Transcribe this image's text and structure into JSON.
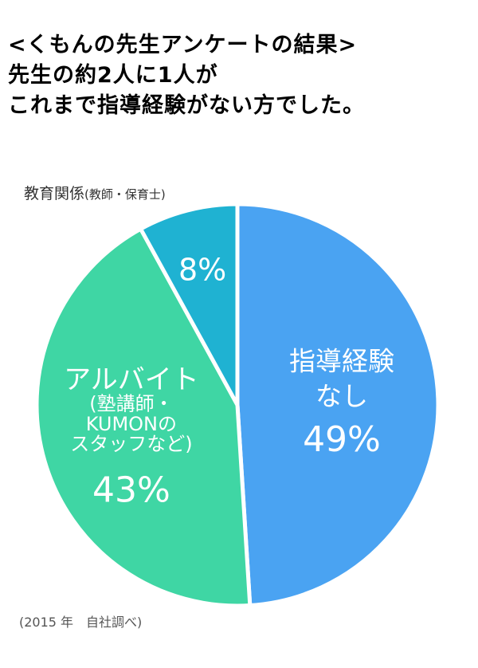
{
  "headline": {
    "line1": "<くもんの先生アンケートの結果>",
    "line2": "先生の約2人に1人が",
    "line3": "これまで指導経験がない方でした。"
  },
  "chart_data": {
    "type": "pie",
    "categories": [
      "指導経験なし",
      "アルバイト(塾講師・KUMONのスタッフなど)",
      "教育関係(教師・保育士)"
    ],
    "values": [
      49,
      43,
      8
    ],
    "value_labels": [
      "49%",
      "43%",
      "8%"
    ],
    "colors": [
      "#4aa3f2",
      "#3fd6a4",
      "#1fb2d2"
    ],
    "slice_texts": [
      [
        "指導経験",
        "なし"
      ],
      [
        "アルバイト",
        "(塾講師・",
        "KUMONの",
        "スタッフなど)"
      ],
      []
    ],
    "outside_label": {
      "main": "教育関係",
      "sub": "(教師・保育士)"
    },
    "source": "(2015 年　自社調べ)"
  }
}
